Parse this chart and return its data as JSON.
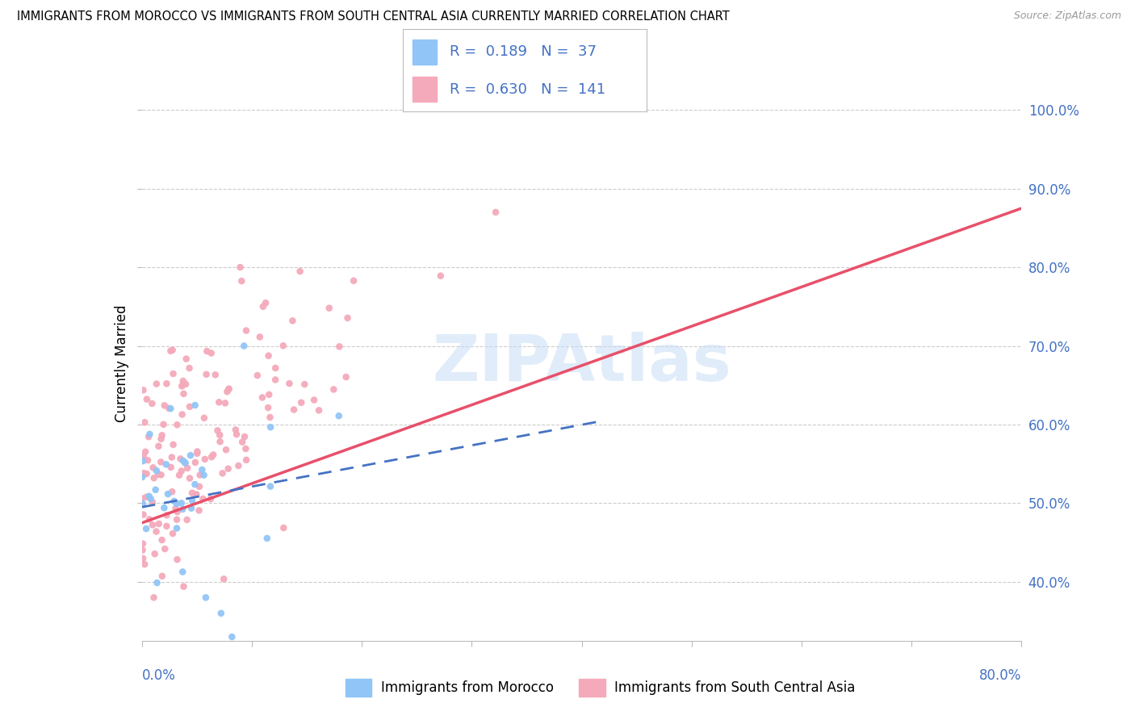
{
  "title": "IMMIGRANTS FROM MOROCCO VS IMMIGRANTS FROM SOUTH CENTRAL ASIA CURRENTLY MARRIED CORRELATION CHART",
  "source": "Source: ZipAtlas.com",
  "ylabel": "Currently Married",
  "watermark": "ZIPAtlas",
  "morocco_R": 0.189,
  "morocco_N": 37,
  "sca_R": 0.63,
  "sca_N": 141,
  "morocco_color": "#92C5F7",
  "sca_color": "#F4AABB",
  "morocco_line_color": "#4472C4",
  "sca_line_color": "#E8506A",
  "xlim": [
    0.0,
    0.8
  ],
  "ylim": [
    0.325,
    1.03
  ],
  "yticks": [
    0.4,
    0.5,
    0.6,
    0.7,
    0.8,
    0.9,
    1.0
  ],
  "ytick_labels": [
    "40.0%",
    "50.0%",
    "60.0%",
    "70.0%",
    "80.0%",
    "90.0%",
    "100.0%"
  ],
  "morocco_trend_x": [
    0.0,
    0.42
  ],
  "morocco_trend_y": [
    0.495,
    0.605
  ],
  "sca_trend_x": [
    0.0,
    0.8
  ],
  "sca_trend_y": [
    0.475,
    0.875
  ]
}
